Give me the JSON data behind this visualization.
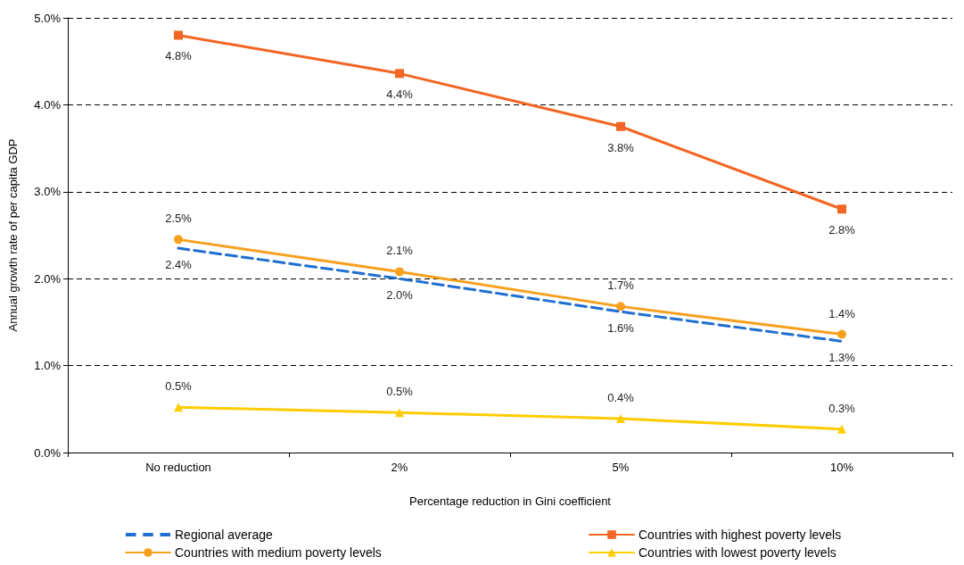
{
  "chart_data": {
    "type": "line",
    "xlabel": "Percentage reduction in Gini coefficient",
    "ylabel": "Annual growth rate of per capita GDP",
    "categories": [
      "No reduction",
      "2%",
      "5%",
      "10%"
    ],
    "ylim": [
      0,
      5
    ],
    "yticks": [
      {
        "value": 0,
        "label": "0.0%"
      },
      {
        "value": 1,
        "label": "1.0%"
      },
      {
        "value": 2,
        "label": "2.0%"
      },
      {
        "value": 3,
        "label": "3.0%"
      },
      {
        "value": 4,
        "label": "4.0%"
      },
      {
        "value": 5,
        "label": "5.0%"
      }
    ],
    "grid": "y",
    "legend": "bottom",
    "series": [
      {
        "name": "Regional average",
        "color": "#1f6fd0",
        "line_style": "dashed",
        "marker": "none",
        "values": [
          2.35,
          2.0,
          1.62,
          1.28
        ],
        "value_labels": [
          "2.4%",
          "2.0%",
          "1.6%",
          "1.3%"
        ]
      },
      {
        "name": "Countries with highest poverty levels",
        "color": "#f26522",
        "line_style": "solid",
        "marker": "square",
        "values": [
          4.8,
          4.36,
          3.75,
          2.8
        ],
        "value_labels": [
          "4.8%",
          "4.4%",
          "3.8%",
          "2.8%"
        ]
      },
      {
        "name": "Countries with medium poverty levels",
        "color": "#f7a01e",
        "line_style": "solid",
        "marker": "circle",
        "values": [
          2.45,
          2.08,
          1.68,
          1.36
        ],
        "value_labels": [
          "2.5%",
          "2.1%",
          "1.7%",
          "1.4%"
        ]
      },
      {
        "name": "Countries with lowest poverty levels",
        "color": "#ffcc00",
        "line_style": "solid",
        "marker": "triangle",
        "values": [
          0.52,
          0.46,
          0.39,
          0.27
        ],
        "value_labels": [
          "0.5%",
          "0.5%",
          "0.4%",
          "0.3%"
        ]
      }
    ]
  }
}
